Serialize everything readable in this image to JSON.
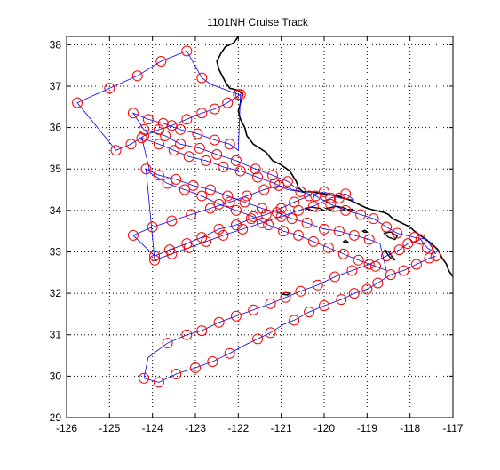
{
  "chart_data": {
    "type": "line",
    "title": "1101NH Cruise Track",
    "xlabel": "",
    "ylabel": "",
    "xlim": [
      -126,
      -117
    ],
    "ylim": [
      29,
      38.2
    ],
    "xticks": [
      -126,
      -125,
      -124,
      -123,
      -122,
      -121,
      -120,
      -119,
      -118,
      -117
    ],
    "yticks": [
      29,
      30,
      31,
      32,
      33,
      34,
      35,
      36,
      37,
      38
    ],
    "grid": true,
    "grid_style": "dotted",
    "colors": {
      "track": "#0000ff",
      "station": "#ff0000",
      "coast": "#000000"
    },
    "series": [
      {
        "kind": "track",
        "x": [
          -117.4,
          -117.55,
          -117.85,
          -118.15,
          -118.45,
          -118.75,
          -119.0,
          -119.3,
          -119.6,
          -120.0,
          -120.35,
          -120.7,
          -120.95,
          -121.25,
          -121.55,
          -121.85,
          -122.2,
          -122.6,
          -123.0,
          -123.45,
          -123.85,
          -124.2,
          -124.1,
          -123.65,
          -123.2,
          -122.85,
          -122.45,
          -122.05,
          -121.65,
          -121.25,
          -120.9,
          -120.55,
          -120.15,
          -119.75,
          -119.35,
          -118.95,
          -118.55,
          -118.25,
          -118.05,
          -117.75,
          -117.6,
          -117.4,
          -117.6,
          -117.9,
          -118.3,
          -118.55,
          -118.85,
          -119.15,
          -119.5,
          -119.85,
          -120.2,
          -120.55,
          -120.85,
          -121.15,
          -121.55,
          -121.95,
          -122.35,
          -122.75,
          -123.15,
          -123.5,
          -123.85,
          -124.25,
          -124.05,
          -123.65,
          -123.25,
          -122.85,
          -122.45,
          -122.05,
          -121.65,
          -121.3,
          -120.95,
          -120.6,
          -120.25,
          -119.9,
          -119.55,
          -119.2,
          -118.8,
          -118.55,
          -118.7,
          -118.95,
          -119.3,
          -119.65,
          -120.0,
          -120.4,
          -120.75,
          -121.1,
          -121.45,
          -121.85,
          -122.25,
          -122.65,
          -123.05,
          -123.45,
          -123.85,
          -124.15,
          -123.95,
          -123.55,
          -123.15,
          -122.75,
          -122.35,
          -121.9,
          -121.45,
          -121.0,
          -120.6,
          -120.25,
          -119.85,
          -119.5,
          -119.3,
          -119.65,
          -120.0,
          -120.35,
          -120.7,
          -121.0,
          -121.35,
          -121.7,
          -122.05,
          -122.45,
          -122.85,
          -123.2,
          -123.6,
          -123.95,
          -124.45,
          -124.0,
          -123.55,
          -123.1,
          -122.65,
          -122.2,
          -121.8,
          -121.4,
          -121.05,
          -120.55,
          -120.85,
          -121.2,
          -121.6,
          -122.05,
          -122.5,
          -122.9,
          -123.35,
          -123.7,
          -124.2,
          -124.45,
          -124.1,
          -123.75,
          -123.35,
          -122.95,
          -122.55,
          -122.2,
          -122.0,
          -121.95,
          -122.25,
          -122.55,
          -122.85,
          -123.2,
          -123.55,
          -123.85,
          -124.2,
          -124.5,
          -124.85,
          -125.75,
          -125.0,
          -124.35,
          -123.8,
          -123.2,
          -122.85,
          -122.65,
          -122.0,
          -121.9
        ],
        "y": [
          32.9,
          32.85,
          32.7,
          32.55,
          32.45,
          32.25,
          32.1,
          32.0,
          31.85,
          31.7,
          31.55,
          31.35,
          31.25,
          31.05,
          30.9,
          30.75,
          30.55,
          30.35,
          30.2,
          30.05,
          29.85,
          29.95,
          30.45,
          30.8,
          31.0,
          31.1,
          31.3,
          31.45,
          31.6,
          31.75,
          31.9,
          32.05,
          32.2,
          32.4,
          32.55,
          32.7,
          32.9,
          33.05,
          33.2,
          33.3,
          33.1,
          32.95,
          33.3,
          33.35,
          33.45,
          33.6,
          33.8,
          33.9,
          34.0,
          34.15,
          34.35,
          34.45,
          34.5,
          34.65,
          34.8,
          34.95,
          35.05,
          35.2,
          35.3,
          35.45,
          35.6,
          35.75,
          34.9,
          34.65,
          34.5,
          34.35,
          34.15,
          34.0,
          33.85,
          33.65,
          33.5,
          33.4,
          33.25,
          33.1,
          32.95,
          32.8,
          32.65,
          32.55,
          33.2,
          33.3,
          33.4,
          33.5,
          33.55,
          33.7,
          33.8,
          33.95,
          34.05,
          34.2,
          34.35,
          34.5,
          34.6,
          34.75,
          34.85,
          35.0,
          32.8,
          32.95,
          33.1,
          33.25,
          33.4,
          33.55,
          33.7,
          33.85,
          34.0,
          34.1,
          34.3,
          34.4,
          34.25,
          34.3,
          34.45,
          34.35,
          34.2,
          34.05,
          33.9,
          33.8,
          33.65,
          33.55,
          33.35,
          33.2,
          33.05,
          32.9,
          33.4,
          33.6,
          33.75,
          33.9,
          34.05,
          34.2,
          34.35,
          34.5,
          34.6,
          34.45,
          34.7,
          34.85,
          35.0,
          35.2,
          35.35,
          35.5,
          35.6,
          35.8,
          35.95,
          36.35,
          36.2,
          36.1,
          35.95,
          35.85,
          35.7,
          35.6,
          35.45,
          36.8,
          36.6,
          36.45,
          36.35,
          36.2,
          36.05,
          35.95,
          35.8,
          35.6,
          35.45,
          36.6,
          36.95,
          37.25,
          37.6,
          37.85,
          37.2,
          37.05,
          36.8,
          36.75
        ]
      },
      {
        "kind": "stations",
        "x": [
          -117.4,
          -117.55,
          -117.85,
          -118.15,
          -118.45,
          -118.75,
          -119.0,
          -119.3,
          -119.6,
          -120.0,
          -120.35,
          -120.7,
          -121.25,
          -121.55,
          -122.2,
          -122.6,
          -123.0,
          -123.45,
          -123.85,
          -124.2,
          -123.65,
          -123.2,
          -122.85,
          -122.45,
          -122.05,
          -121.65,
          -121.25,
          -120.9,
          -120.55,
          -120.15,
          -119.75,
          -119.35,
          -118.95,
          -118.55,
          -118.25,
          -118.05,
          -117.75,
          -117.6,
          -117.9,
          -118.3,
          -118.55,
          -118.85,
          -119.15,
          -119.5,
          -119.85,
          -120.2,
          -120.55,
          -121.15,
          -121.55,
          -121.95,
          -122.35,
          -122.75,
          -123.15,
          -123.5,
          -123.85,
          -124.25,
          -123.65,
          -123.25,
          -122.85,
          -122.45,
          -122.05,
          -121.65,
          -121.3,
          -120.95,
          -120.6,
          -120.25,
          -119.9,
          -119.55,
          -119.2,
          -118.8,
          -118.95,
          -119.3,
          -119.65,
          -120.0,
          -120.4,
          -120.75,
          -121.1,
          -121.45,
          -121.85,
          -122.25,
          -122.65,
          -123.05,
          -123.45,
          -123.85,
          -124.15,
          -123.95,
          -123.55,
          -123.15,
          -122.75,
          -122.35,
          -121.9,
          -121.45,
          -121.0,
          -120.6,
          -120.25,
          -119.85,
          -119.5,
          -119.65,
          -120.0,
          -120.35,
          -120.7,
          -121.0,
          -121.35,
          -121.7,
          -122.05,
          -122.45,
          -122.85,
          -123.2,
          -123.6,
          -123.95,
          -124.45,
          -124.0,
          -123.55,
          -123.1,
          -122.65,
          -122.2,
          -121.8,
          -121.4,
          -121.05,
          -120.85,
          -121.2,
          -121.6,
          -122.05,
          -122.5,
          -122.9,
          -123.35,
          -123.7,
          -124.2,
          -124.45,
          -124.1,
          -123.75,
          -123.35,
          -122.95,
          -122.55,
          -122.2,
          -121.95,
          -122.25,
          -122.55,
          -122.85,
          -123.2,
          -123.55,
          -123.85,
          -124.2,
          -124.5,
          -124.85,
          -125.75,
          -125.0,
          -124.35,
          -123.8,
          -123.2,
          -122.85,
          -122.0
        ],
        "y": [
          32.9,
          32.85,
          32.7,
          32.55,
          32.45,
          32.25,
          32.1,
          32.0,
          31.85,
          31.7,
          31.55,
          31.35,
          31.05,
          30.9,
          30.55,
          30.35,
          30.2,
          30.05,
          29.85,
          29.95,
          30.8,
          31.0,
          31.1,
          31.3,
          31.45,
          31.6,
          31.75,
          31.9,
          32.05,
          32.2,
          32.4,
          32.55,
          32.7,
          32.9,
          33.05,
          33.2,
          33.3,
          33.1,
          33.35,
          33.45,
          33.6,
          33.8,
          33.9,
          34.0,
          34.15,
          34.35,
          34.45,
          34.65,
          34.8,
          34.95,
          35.05,
          35.2,
          35.3,
          35.45,
          35.6,
          35.75,
          34.65,
          34.5,
          34.35,
          34.15,
          34.0,
          33.85,
          33.65,
          33.5,
          33.4,
          33.25,
          33.1,
          32.95,
          32.8,
          32.65,
          33.3,
          33.4,
          33.5,
          33.55,
          33.7,
          33.8,
          33.95,
          34.05,
          34.2,
          34.35,
          34.5,
          34.6,
          34.75,
          34.85,
          35.0,
          32.8,
          32.95,
          33.1,
          33.25,
          33.4,
          33.55,
          33.7,
          33.85,
          34.0,
          34.1,
          34.3,
          34.4,
          34.3,
          34.45,
          34.35,
          34.2,
          34.05,
          33.9,
          33.8,
          33.65,
          33.55,
          33.35,
          33.2,
          33.05,
          32.9,
          33.4,
          33.6,
          33.75,
          33.9,
          34.05,
          34.2,
          34.35,
          34.5,
          34.6,
          34.7,
          34.85,
          35.0,
          35.2,
          35.35,
          35.5,
          35.6,
          35.8,
          35.95,
          36.35,
          36.2,
          36.1,
          35.95,
          35.85,
          35.7,
          35.6,
          36.8,
          36.6,
          36.45,
          36.35,
          36.2,
          36.05,
          35.95,
          35.8,
          35.6,
          35.45,
          36.6,
          36.95,
          37.25,
          37.6,
          37.85,
          37.2,
          36.8
        ]
      },
      {
        "kind": "coastline",
        "x": [
          -122.0,
          -122.1,
          -122.3,
          -122.4,
          -122.5,
          -122.45,
          -122.3,
          -122.2,
          -122.0,
          -121.9,
          -121.95,
          -122.0,
          -121.95,
          -121.85,
          -121.8,
          -121.65,
          -121.5,
          -121.35,
          -121.2,
          -121.0,
          -120.8,
          -120.65,
          -120.6,
          -120.5,
          -120.3,
          -120.0,
          -119.7,
          -119.4,
          -119.2,
          -119.0,
          -118.8,
          -118.6,
          -118.5,
          -118.4,
          -118.2,
          -118.0,
          -117.9,
          -117.7,
          -117.5,
          -117.35,
          -117.25,
          -117.15,
          -117.1,
          -117.0
        ],
        "y": [
          38.2,
          38.05,
          37.95,
          37.8,
          37.6,
          37.4,
          37.1,
          36.95,
          36.9,
          36.8,
          36.6,
          36.4,
          36.2,
          36.0,
          35.8,
          35.6,
          35.5,
          35.4,
          35.2,
          35.1,
          34.95,
          34.7,
          34.55,
          34.45,
          34.45,
          34.4,
          34.35,
          34.25,
          34.15,
          34.05,
          34.0,
          33.95,
          33.9,
          33.8,
          33.7,
          33.6,
          33.5,
          33.35,
          33.2,
          33.05,
          32.85,
          32.7,
          32.55,
          32.4
        ]
      }
    ],
    "islands": [
      {
        "x": [
          -120.45,
          -120.3,
          -120.1,
          -120.0,
          -120.2,
          -120.45
        ],
        "y": [
          34.05,
          34.08,
          34.05,
          34.0,
          33.98,
          34.05
        ]
      },
      {
        "x": [
          -119.95,
          -119.7,
          -119.5,
          -119.55,
          -119.8,
          -119.95
        ],
        "y": [
          34.05,
          34.1,
          34.05,
          34.0,
          33.98,
          34.05
        ]
      },
      {
        "x": [
          -119.45,
          -119.35,
          -119.3,
          -119.4,
          -119.45
        ],
        "y": [
          34.02,
          34.03,
          34.0,
          33.99,
          34.02
        ]
      },
      {
        "x": [
          -119.55,
          -119.5,
          -119.45,
          -119.52,
          -119.55
        ],
        "y": [
          33.25,
          33.28,
          33.24,
          33.22,
          33.25
        ]
      },
      {
        "x": [
          -119.1,
          -119.05,
          -119.0,
          -119.06,
          -119.1
        ],
        "y": [
          33.5,
          33.52,
          33.48,
          33.47,
          33.5
        ]
      },
      {
        "x": [
          -118.6,
          -118.45,
          -118.3,
          -118.35,
          -118.5,
          -118.6
        ],
        "y": [
          33.45,
          33.48,
          33.38,
          33.3,
          33.35,
          33.45
        ]
      },
      {
        "x": [
          -118.6,
          -118.5,
          -118.35,
          -118.45,
          -118.6
        ],
        "y": [
          33.05,
          33.0,
          32.8,
          32.85,
          33.05
        ]
      },
      {
        "x": [
          -121.0,
          -120.9,
          -120.8,
          -120.85,
          -121.0
        ],
        "y": [
          31.98,
          32.02,
          32.0,
          31.96,
          31.98
        ]
      }
    ]
  }
}
